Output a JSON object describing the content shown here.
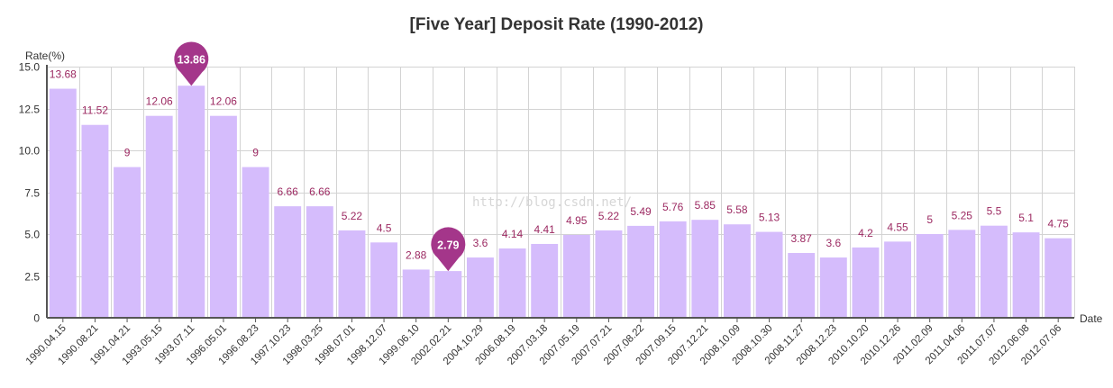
{
  "chart_data": {
    "type": "bar",
    "title": "[Five Year] Deposit Rate (1990-2012)",
    "xlabel": "Date",
    "ylabel": "Rate(%)",
    "ylim": [
      0,
      15
    ],
    "yticks": [
      "0",
      "2.5",
      "5.0",
      "7.5",
      "10.0",
      "12.5",
      "15.0"
    ],
    "ytick_values": [
      0,
      2.5,
      5,
      7.5,
      10,
      12.5,
      15
    ],
    "grid": true,
    "categories": [
      "1990.04.15",
      "1990.08.21",
      "1991.04.21",
      "1993.05.15",
      "1993.07.11",
      "1996.05.01",
      "1996.08.23",
      "1997.10.23",
      "1998.03.25",
      "1998.07.01",
      "1998.12.07",
      "1999.06.10",
      "2002.02.21",
      "2004.10.29",
      "2006.08.19",
      "2007.03.18",
      "2007.05.19",
      "2007.07.21",
      "2007.08.22",
      "2007.09.15",
      "2007.12.21",
      "2008.10.09",
      "2008.10.30",
      "2008.11.27",
      "2008.12.23",
      "2010.10.20",
      "2010.12.26",
      "2011.02.09",
      "2011.04.06",
      "2011.07.07",
      "2012.06.08",
      "2012.07.06"
    ],
    "values": [
      13.68,
      11.52,
      9,
      12.06,
      13.86,
      12.06,
      9,
      6.66,
      6.66,
      5.22,
      4.5,
      2.88,
      2.79,
      3.6,
      4.14,
      4.41,
      4.95,
      5.22,
      5.49,
      5.76,
      5.85,
      5.58,
      5.13,
      3.87,
      3.6,
      4.2,
      4.55,
      5,
      5.25,
      5.5,
      5.1,
      4.75
    ],
    "data_labels": [
      "13.68",
      "11.52",
      "9",
      "12.06",
      "13.86",
      "12.06",
      "9",
      "6.66",
      "6.66",
      "5.22",
      "4.5",
      "2.88",
      "2.79",
      "3.6",
      "4.14",
      "4.41",
      "4.95",
      "5.22",
      "5.49",
      "5.76",
      "5.85",
      "5.58",
      "5.13",
      "3.87",
      "3.6",
      "4.2",
      "4.55",
      "5",
      "5.25",
      "5.5",
      "5.1",
      "4.75"
    ],
    "max_marker_index": 4,
    "min_marker_index": 12,
    "colors": {
      "bar": "#d5bcfc",
      "label": "#9c2a62",
      "marker": "#a4368a",
      "grid": "#d3d3d3",
      "axis": "#555555",
      "watermark": "#d6d6d6"
    }
  },
  "watermark": "http://blog.csdn.net/"
}
